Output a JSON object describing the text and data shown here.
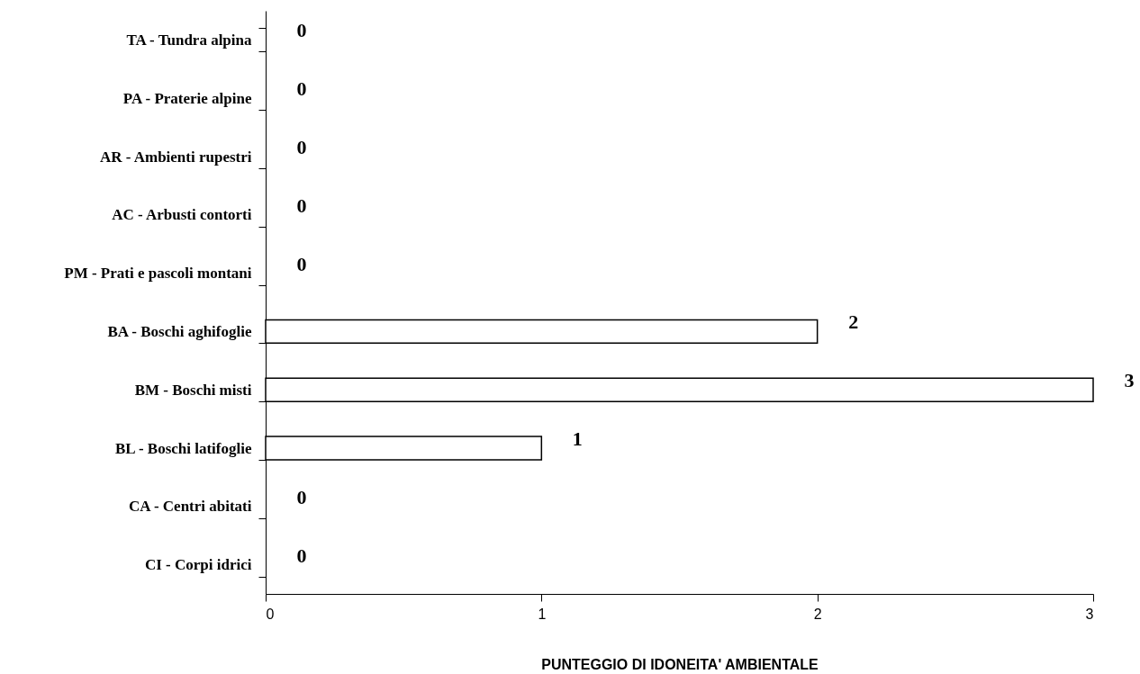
{
  "chart_data": {
    "type": "bar",
    "orientation": "horizontal",
    "xlabel": "PUNTEGGIO DI IDONEITA' AMBIENTALE",
    "categories": [
      "TA - Tundra alpina",
      "PA - Praterie alpine",
      "AR - Ambienti rupestri",
      "AC - Arbusti contorti",
      "PM - Prati e pascoli montani",
      "BA - Boschi aghifoglie",
      "BM - Boschi misti",
      "BL - Boschi latifoglie",
      "CA - Centri abitati",
      "CI - Corpi idrici"
    ],
    "values": [
      0,
      0,
      0,
      0,
      0,
      2,
      3,
      1,
      0,
      0
    ],
    "color": "#ffffff",
    "xlim": [
      0,
      3
    ],
    "xticks": [
      0,
      1,
      2,
      3
    ],
    "grid": false,
    "data_labels": true
  }
}
